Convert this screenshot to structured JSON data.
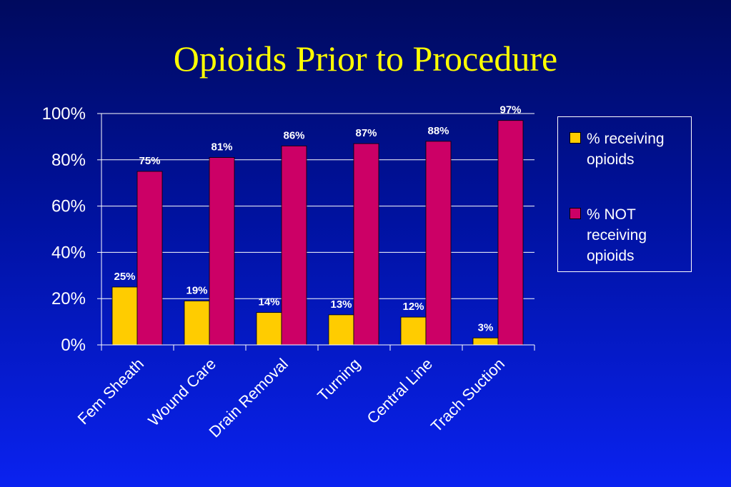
{
  "slide": {
    "title": "Opioids Prior to Procedure"
  },
  "chart_data": {
    "type": "bar",
    "title": "Opioids Prior to Procedure",
    "categories": [
      "Fem Sheath",
      "Wound Care",
      "Drain Removal",
      "Turning",
      "Central Line",
      "Trach Suction"
    ],
    "series": [
      {
        "name": "% receiving opioids",
        "color": "#ffcc00",
        "values": [
          25,
          19,
          14,
          13,
          12,
          3
        ],
        "labels": [
          "25%",
          "19%",
          "14%",
          "13%",
          "12%",
          "3%"
        ]
      },
      {
        "name": "% NOT receiving opioids",
        "color": "#cc0066",
        "values": [
          75,
          81,
          86,
          87,
          88,
          97
        ],
        "labels": [
          "75%",
          "81%",
          "86%",
          "87%",
          "88%",
          "97%"
        ]
      }
    ],
    "yticks": [
      "0%",
      "20%",
      "40%",
      "60%",
      "80%",
      "100%"
    ],
    "ylim": [
      0,
      100
    ],
    "xlabel": "",
    "ylabel": "",
    "grid": true,
    "legend_position": "right"
  }
}
